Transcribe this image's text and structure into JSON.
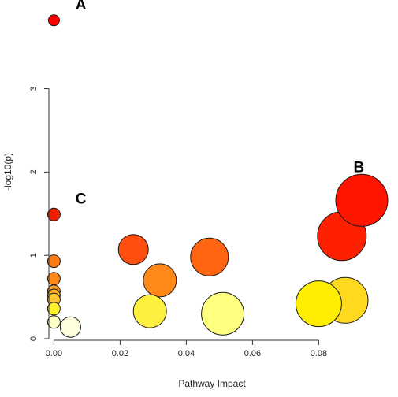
{
  "chart_data": {
    "type": "scatter",
    "title": "",
    "xlabel": "Pathway Impact",
    "ylabel": "-log10(p)",
    "xlim": [
      -0.002,
      0.098
    ],
    "ylim": [
      0,
      3.95
    ],
    "xticks": [
      "0.00",
      "0.02",
      "0.04",
      "0.06",
      "0.08"
    ],
    "yticks": [
      "0",
      "1",
      "2",
      "3"
    ],
    "grid": false,
    "points": [
      {
        "x": 0.0,
        "y": 3.82,
        "r": 7,
        "color": "#ff0000"
      },
      {
        "x": 0.0,
        "y": 1.49,
        "r": 8,
        "color": "#ee1e00"
      },
      {
        "x": 0.0,
        "y": 0.93,
        "r": 8,
        "color": "#ff7a10"
      },
      {
        "x": 0.0,
        "y": 0.72,
        "r": 8,
        "color": "#ff8818"
      },
      {
        "x": 0.0,
        "y": 0.57,
        "r": 8,
        "color": "#ffa020"
      },
      {
        "x": 0.0,
        "y": 0.52,
        "r": 8,
        "color": "#ffb020"
      },
      {
        "x": 0.0,
        "y": 0.47,
        "r": 8,
        "color": "#ffc830"
      },
      {
        "x": 0.0,
        "y": 0.36,
        "r": 8,
        "color": "#fff030"
      },
      {
        "x": 0.0,
        "y": 0.2,
        "r": 8,
        "color": "#ffffc8"
      },
      {
        "x": 0.005,
        "y": 0.14,
        "r": 13,
        "color": "#ffffe0"
      },
      {
        "x": 0.024,
        "y": 1.07,
        "r": 19,
        "color": "#ff4e10"
      },
      {
        "x": 0.032,
        "y": 0.7,
        "r": 21,
        "color": "#ff8818"
      },
      {
        "x": 0.029,
        "y": 0.33,
        "r": 21,
        "color": "#fff040"
      },
      {
        "x": 0.047,
        "y": 0.98,
        "r": 24,
        "color": "#ff6510"
      },
      {
        "x": 0.051,
        "y": 0.3,
        "r": 27,
        "color": "#ffff80"
      },
      {
        "x": 0.088,
        "y": 0.46,
        "r": 29,
        "color": "#ffd820"
      },
      {
        "x": 0.08,
        "y": 0.42,
        "r": 29,
        "color": "#ffee00"
      },
      {
        "x": 0.087,
        "y": 1.23,
        "r": 31,
        "color": "#ff2000"
      },
      {
        "x": 0.093,
        "y": 1.66,
        "r": 33,
        "color": "#ff1400"
      }
    ],
    "annotations": [
      {
        "text": "A",
        "x": 0.0065,
        "y": 3.95
      },
      {
        "text": "B",
        "x": 0.0905,
        "y": 2.0
      },
      {
        "text": "C",
        "x": 0.0065,
        "y": 1.62
      }
    ]
  }
}
